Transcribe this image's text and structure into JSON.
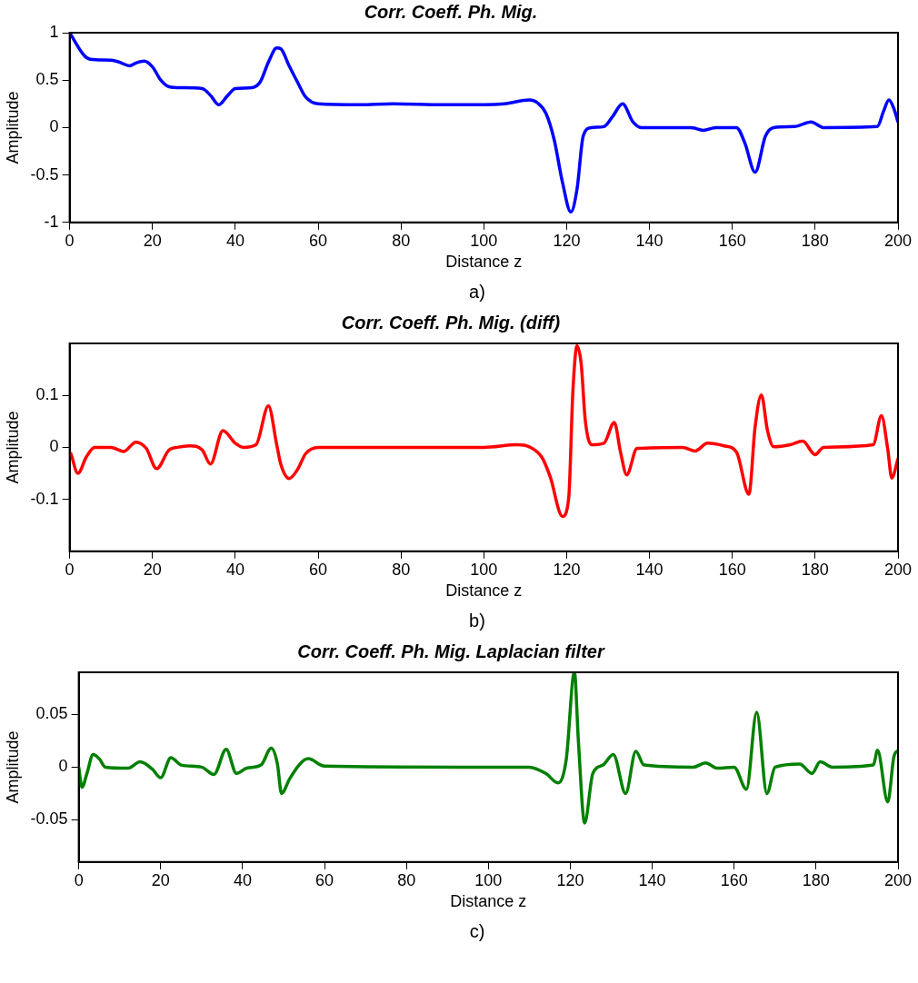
{
  "chart_data": [
    {
      "type": "line",
      "title": "Corr. Coeff. Ph. Mig.",
      "xlabel": "Distance z",
      "ylabel": "Amplitude",
      "annotations": [
        "a)"
      ],
      "x": [
        0,
        3.5,
        5,
        10,
        12,
        14.5,
        16,
        18,
        20,
        22,
        24,
        27,
        32,
        34,
        36,
        38,
        40,
        44,
        46,
        48,
        50,
        51,
        53,
        55,
        57,
        60,
        70,
        78,
        90,
        100,
        105,
        111,
        113,
        115,
        117,
        119,
        121,
        122.5,
        124,
        126,
        129,
        131,
        133.5,
        136,
        138,
        150,
        153,
        156,
        161,
        163,
        165.5,
        168,
        170,
        175,
        179,
        182,
        195,
        196.5,
        197.8,
        199,
        200
      ],
      "series": [
        {
          "color": "#0000ff",
          "values": [
            1,
            0.76,
            0.72,
            0.71,
            0.69,
            0.65,
            0.68,
            0.7,
            0.64,
            0.5,
            0.43,
            0.42,
            0.41,
            0.34,
            0.24,
            0.33,
            0.41,
            0.42,
            0.48,
            0.69,
            0.84,
            0.83,
            0.65,
            0.48,
            0.32,
            0.25,
            0.24,
            0.25,
            0.24,
            0.24,
            0.25,
            0.29,
            0.26,
            0.15,
            -0.13,
            -0.58,
            -0.89,
            -0.65,
            -0.09,
            0,
            0.01,
            0.11,
            0.25,
            0.06,
            0,
            0,
            -0.03,
            0,
            0,
            -0.16,
            -0.47,
            -0.09,
            0,
            0.01,
            0.06,
            0,
            0.01,
            0.17,
            0.29,
            0.2,
            0.06
          ]
        }
      ],
      "xlim": [
        0,
        200
      ],
      "xticks": [
        0,
        20,
        40,
        60,
        80,
        100,
        120,
        140,
        160,
        180,
        200
      ],
      "ylim": [
        -1,
        1
      ],
      "yticks": [
        -1,
        -0.5,
        0,
        0.5,
        1
      ]
    },
    {
      "type": "line",
      "title": "Corr. Coeff. Ph. Mig. (diff)",
      "xlabel": "Distance z",
      "ylabel": "Amplitude",
      "annotations": [
        "b)"
      ],
      "x": [
        0.3,
        2,
        4,
        6,
        10,
        13,
        16,
        18.5,
        21,
        24,
        26,
        29,
        32,
        34,
        37,
        40,
        42,
        45,
        48,
        50,
        51,
        53,
        55,
        57,
        60,
        100,
        108,
        111,
        114,
        116,
        119,
        120.5,
        121.5,
        122.5,
        123.5,
        124.5,
        126,
        129,
        131.5,
        133,
        134.5,
        137,
        148,
        151,
        154,
        158,
        161,
        164,
        165.5,
        167,
        168.5,
        170,
        174,
        177,
        180,
        182,
        194,
        196,
        197.5,
        198.5,
        200
      ],
      "series": [
        {
          "color": "#ff0000",
          "values": [
            -0.012,
            -0.05,
            -0.019,
            0,
            0,
            -0.008,
            0.01,
            -0.002,
            -0.041,
            -0.005,
            0,
            0.003,
            -0.005,
            -0.032,
            0.032,
            0.008,
            0,
            0.005,
            0.08,
            0.005,
            -0.033,
            -0.06,
            -0.043,
            -0.012,
            0,
            0,
            0.005,
            0.001,
            -0.019,
            -0.056,
            -0.133,
            -0.097,
            0.107,
            0.195,
            0.161,
            0.052,
            0.005,
            0.008,
            0.048,
            -0.009,
            -0.053,
            -0.002,
            0,
            -0.007,
            0.008,
            0.003,
            -0.009,
            -0.09,
            0.039,
            0.101,
            0.032,
            0.001,
            0.005,
            0.012,
            -0.014,
            0,
            0.005,
            0.061,
            -0.002,
            -0.059,
            -0.022
          ]
        }
      ],
      "xlim": [
        0,
        200
      ],
      "xticks": [
        0,
        20,
        40,
        60,
        80,
        100,
        120,
        140,
        160,
        180,
        200
      ],
      "ylim": [
        -0.2,
        0.2
      ],
      "yticks": [
        -0.1,
        0,
        0.1
      ]
    },
    {
      "type": "line",
      "title": "Corr. Coeff. Ph. Mig. Laplacian filter",
      "xlabel": "Distance z",
      "ylabel": "Amplitude",
      "annotations": [
        "c)"
      ],
      "x": [
        0,
        0.8,
        2,
        3.5,
        5,
        6.5,
        12,
        15,
        18,
        20,
        22.5,
        25,
        30,
        33,
        36,
        38.5,
        41,
        44.5,
        47,
        48.5,
        49.5,
        51.5,
        54,
        56,
        60,
        100,
        110,
        114,
        117,
        119,
        121,
        122,
        123.5,
        125.5,
        128,
        130.5,
        133.5,
        136,
        138,
        150,
        153,
        156,
        160,
        163,
        165.5,
        168,
        170,
        176,
        179,
        181,
        184,
        194,
        195,
        197.5,
        199,
        200
      ],
      "series": [
        {
          "color": "#008000",
          "values": [
            0,
            -0.019,
            -0.006,
            0.012,
            0.008,
            0,
            -0.001,
            0.005,
            -0.002,
            -0.01,
            0.009,
            0.002,
            0,
            -0.007,
            0.017,
            -0.006,
            -0.001,
            0.002,
            0.018,
            0.003,
            -0.025,
            -0.011,
            0.003,
            0.008,
            0.001,
            0,
            0,
            -0.006,
            -0.015,
            0.007,
            0.09,
            0.023,
            -0.053,
            -0.006,
            0.002,
            0.012,
            -0.025,
            0.015,
            0.002,
            0,
            0.004,
            -0.001,
            0,
            -0.021,
            0.052,
            -0.025,
            0,
            0.003,
            -0.006,
            0.005,
            0,
            0.002,
            0.016,
            -0.033,
            0.01,
            0.016
          ]
        }
      ],
      "xlim": [
        0,
        200
      ],
      "xticks": [
        0,
        20,
        40,
        60,
        80,
        100,
        120,
        140,
        160,
        180,
        200
      ],
      "ylim": [
        -0.09,
        0.09
      ],
      "yticks": [
        -0.05,
        0,
        0.05
      ]
    }
  ]
}
